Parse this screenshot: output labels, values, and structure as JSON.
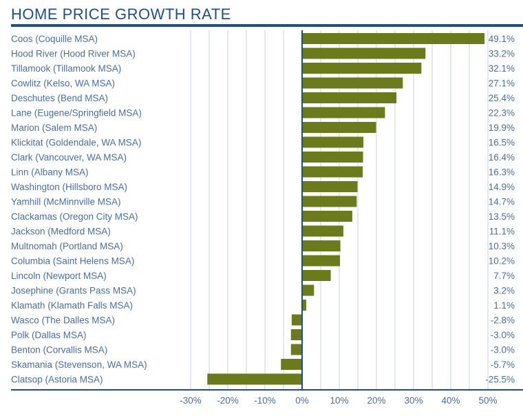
{
  "chart_data": {
    "type": "bar",
    "orientation": "horizontal",
    "title": "HOME PRICE GROWTH RATE",
    "xlabel": "",
    "ylabel": "",
    "xlim": [
      -30,
      50
    ],
    "grid": true,
    "categories": [
      "Coos (Coquille MSA)",
      "Hood River (Hood River MSA)",
      "Tillamook (Tillamook MSA)",
      "Cowlitz (Kelso, WA MSA)",
      "Deschutes (Bend MSA)",
      "Lane (Eugene/Springfield MSA)",
      "Marion (Salem MSA)",
      "Klickitat (Goldendale, WA MSA)",
      "Clark (Vancouver, WA MSA)",
      "Linn (Albany MSA)",
      "Washington (Hillsboro MSA)",
      "Yamhill (McMinnville MSA)",
      "Clackamas (Oregon City MSA)",
      "Jackson (Medford MSA)",
      "Multnomah (Portland MSA)",
      "Columbia (Saint Helens MSA)",
      "Lincoln (Newport MSA)",
      "Josephine (Grants Pass MSA)",
      "Klamath (Klamath Falls MSA)",
      "Wasco (The Dalles MSA)",
      "Polk (Dallas MSA)",
      "Benton (Corvallis MSA)",
      "Skamania (Stevenson, WA MSA)",
      "Clatsop (Astoria MSA)"
    ],
    "values": [
      49.1,
      33.2,
      32.1,
      27.1,
      25.4,
      22.3,
      19.9,
      16.5,
      16.4,
      16.3,
      14.9,
      14.7,
      13.5,
      11.1,
      10.3,
      10.2,
      7.7,
      3.2,
      1.1,
      -2.8,
      -3.0,
      -3.0,
      -5.7,
      -25.5
    ],
    "value_labels": [
      "49.1%",
      "33.2%",
      "32.1%",
      "27.1%",
      "25.4%",
      "22.3%",
      "19.9%",
      "16.5%",
      "16.4%",
      "16.3%",
      "14.9%",
      "14.7%",
      "13.5%",
      "11.1%",
      "10.3%",
      "10.2%",
      "7.7%",
      "3.2%",
      "1.1%",
      "-2.8%",
      "-3.0%",
      "-3.0%",
      "-5.7%",
      "-25.5%"
    ],
    "x_ticks": [
      -30,
      -20,
      -10,
      0,
      10,
      20,
      30,
      40,
      50
    ],
    "x_tick_labels": [
      "-30%",
      "-20%",
      "-10%",
      "0%",
      "10%",
      "20%",
      "30%",
      "40%",
      "50%"
    ],
    "colors": {
      "bar": "#6b7a1a",
      "text": "#1f4e8c",
      "grid": "#c8d2e6"
    }
  }
}
